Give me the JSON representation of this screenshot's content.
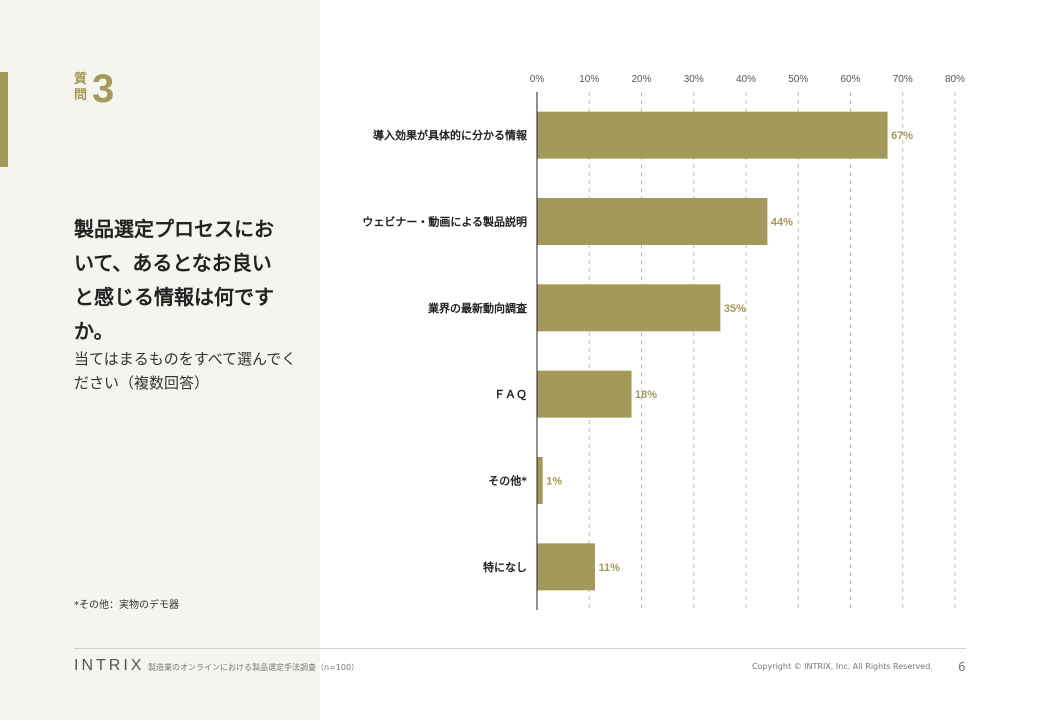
{
  "question": {
    "kanji": "質問",
    "number": "3",
    "text": "製品選定プロセスにおいて、あるとなお良いと感じる情報は何ですか。",
    "subtext": "当てはまるものをすべて選んでください（複数回答）"
  },
  "footnote": "*その他：実物のデモ器",
  "footer": {
    "logo": "INTRIX",
    "source": "製造業のオンラインにおける製品選定手法調査（n=100）",
    "copyright": "Copyright © INTRIX, Inc. All Rights Reserved.",
    "page": "6"
  },
  "colors": {
    "bar": "#a39a5a",
    "label": "#a39a5a",
    "panel": "#f5f4ef"
  },
  "chart_data": {
    "type": "bar",
    "orientation": "horizontal",
    "categories": [
      "導入効果が具体的に分かる情報",
      "ウェビナー・動画による製品説明",
      "業界の最新動向調査",
      "ＦＡＱ",
      "その他*",
      "特になし"
    ],
    "values": [
      67,
      44,
      35,
      18,
      1,
      11
    ],
    "value_labels": [
      "67%",
      "44%",
      "35%",
      "18%",
      "1%",
      "11%"
    ],
    "xlim": [
      0,
      80
    ],
    "xticks": [
      "0%",
      "10%",
      "20%",
      "30%",
      "40%",
      "50%",
      "60%",
      "70%",
      "80%"
    ],
    "grid": "dashed vertical",
    "axis_position": "top"
  }
}
